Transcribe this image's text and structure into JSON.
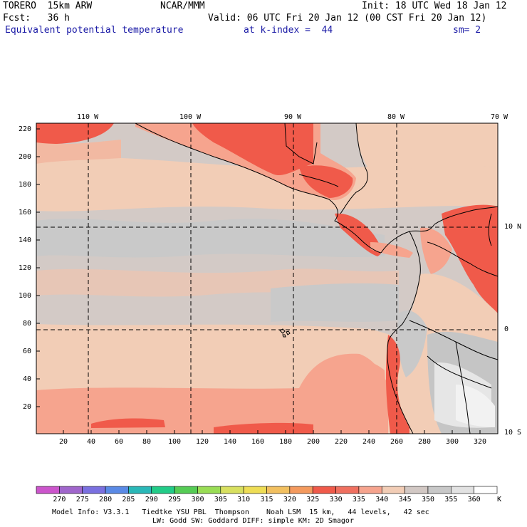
{
  "header": {
    "model": "TORERO  15km ARW",
    "org": "NCAR/MMM",
    "init": "Init: 18 UTC Wed 18 Jan 12",
    "fcst": "Fcst:   36 h",
    "valid": "Valid: 06 UTC Fri 20 Jan 12 (00 CST Fri 20 Jan 12)",
    "field": "Equivalent potential temperature",
    "level": "at k-index =  44",
    "smooth": "sm= 2"
  },
  "axes": {
    "top_lon": [
      "110 W",
      "100 W",
      "90 W",
      "80 W",
      "70 W"
    ],
    "right_lat": [
      "10 N",
      "0",
      "10 S"
    ],
    "y_ticks": [
      "220",
      "200",
      "180",
      "160",
      "140",
      "120",
      "100",
      "80",
      "60",
      "40",
      "20"
    ],
    "x_ticks": [
      "20",
      "40",
      "60",
      "80",
      "100",
      "120",
      "140",
      "160",
      "180",
      "200",
      "220",
      "240",
      "260",
      "280",
      "300",
      "320"
    ]
  },
  "colorbar": {
    "labels": [
      "270",
      "275",
      "280",
      "285",
      "290",
      "295",
      "300",
      "305",
      "310",
      "315",
      "320",
      "325",
      "330",
      "335",
      "340",
      "345",
      "350",
      "355",
      "360"
    ],
    "unit": "K",
    "colors": [
      "#cc55cc",
      "#a066cc",
      "#7a70e0",
      "#5a8ae6",
      "#2ab8b8",
      "#22cc88",
      "#55cc55",
      "#99dd55",
      "#d8e060",
      "#eedd55",
      "#f2c060",
      "#f49a5e",
      "#f05a4a",
      "#f07060",
      "#f6a48e",
      "#f2cdb6",
      "#d2c8c4",
      "#c8c8c8",
      "#e2e2e2",
      "#ffffff"
    ]
  },
  "footer": {
    "line1": "Model Info: V3.3.1   Tiedtke YSU PBL  Thompson    Noah LSM  15 km,   44 levels,   42 sec",
    "line2": "LW: Godd SW: Goddard DIFF: simple KM: 2D Smagor"
  }
}
